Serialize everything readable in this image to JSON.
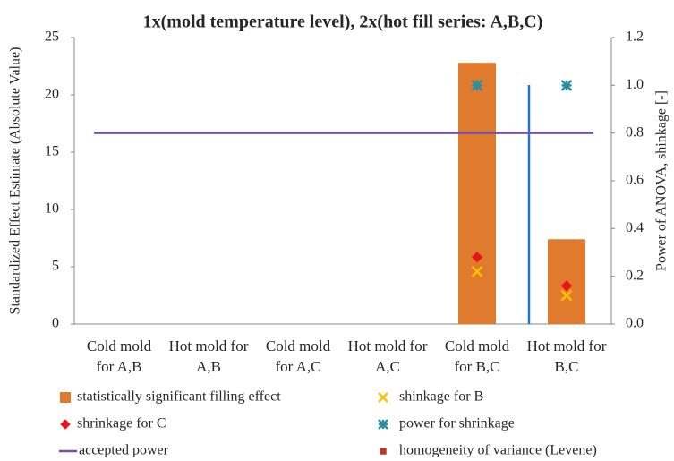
{
  "chart_data": {
    "type": "bar",
    "title": "1x(mold temperature level), 2x(hot fill series: A,B,C)",
    "y_label": "Standardized Effect Estimate (Absolute Value)",
    "y2_label": "Power of ANOVA, shinkage [-]",
    "categories": [
      "Cold mold for A,B",
      "Hot mold for A,B",
      "Cold mold for A,C",
      "Hot mold for A,C",
      "Cold mold for B,C",
      "Hot mold for B,C"
    ],
    "ylim": [
      0,
      25
    ],
    "yticks": [
      0,
      5,
      10,
      15,
      20,
      25
    ],
    "y2lim": [
      0,
      1.2
    ],
    "y2ticks": [
      {
        "value": 0,
        "label": "0.0"
      },
      0.2,
      0.4,
      0.6,
      0.8,
      {
        "value": 1,
        "label": "1.0"
      },
      1.2
    ],
    "series": [
      {
        "name": "statistically significant filling effect",
        "type": "bar",
        "color": "#e07b2e",
        "values": [
          null,
          null,
          null,
          null,
          22.8,
          7.4
        ]
      },
      {
        "name": "shinkage for B",
        "type": "scatter",
        "marker": "x",
        "color": "#ffc000",
        "axis": "y2",
        "values": [
          null,
          null,
          null,
          null,
          0.22,
          0.12
        ]
      },
      {
        "name": "shrinkage for C",
        "type": "scatter",
        "marker": "diamond",
        "color": "#e8141c",
        "axis": "y2",
        "values": [
          null,
          null,
          null,
          null,
          0.28,
          0.16
        ]
      },
      {
        "name": "power for shrinkage",
        "type": "scatter",
        "marker": "asterisk",
        "color": "#2a8f9f",
        "axis": "y2",
        "values": [
          null,
          null,
          null,
          null,
          1,
          1
        ]
      },
      {
        "name": "accepted power",
        "type": "line",
        "color": "#7b4fa8",
        "axis": "y2",
        "values": [
          0.8,
          0.8,
          0.8,
          0.8,
          0.8,
          0.8
        ]
      },
      {
        "name": "homogeneity of variance (Levene)",
        "type": "scatter",
        "marker": "square",
        "color": "#b03a2e",
        "axis": "y2",
        "values": [
          null,
          null,
          null,
          null,
          null,
          null
        ]
      }
    ]
  }
}
